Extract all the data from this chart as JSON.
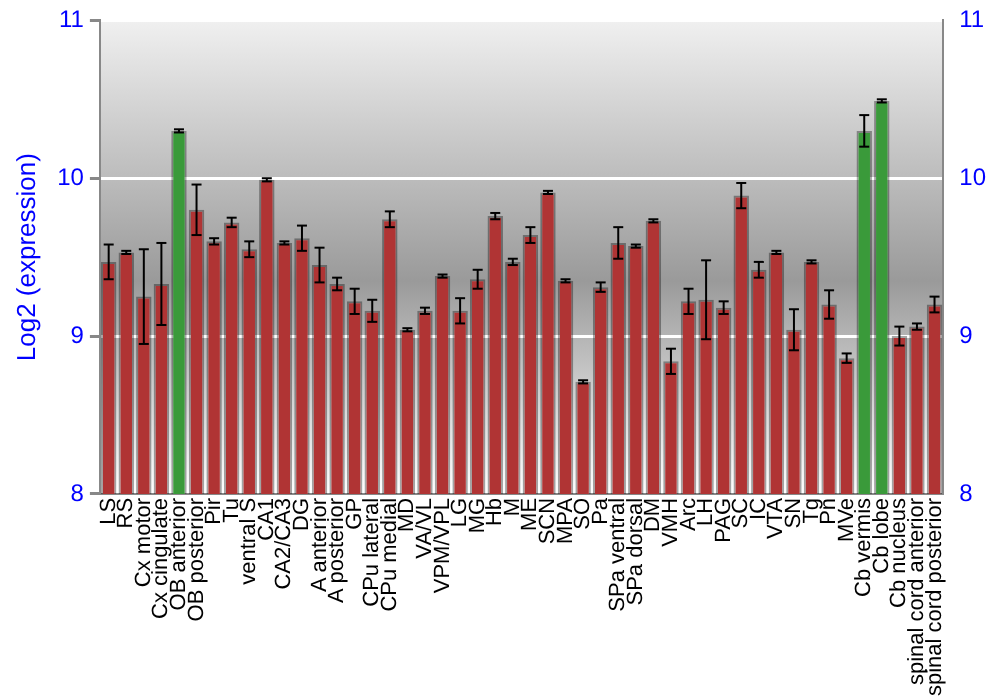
{
  "chart_data": {
    "type": "bar",
    "ylabel": "Log2 (expression)",
    "categories": [
      "LS",
      "RS",
      "Cx motor",
      "Cx cingulate",
      "OB anterior",
      "OB posterior",
      "Pir",
      "Tu",
      "ventral S",
      "CA1",
      "CA2/CA3",
      "DG",
      "A anterior",
      "A posterior",
      "GP",
      "CPu lateral",
      "CPu medial",
      "MD",
      "VA/VL",
      "VPM/VPL",
      "LG",
      "MG",
      "Hb",
      "M",
      "ME",
      "SCN",
      "MPA",
      "SO",
      "Pa",
      "SPa ventral",
      "SPa dorsal",
      "DM",
      "VMH",
      "Arc",
      "LH",
      "PAG",
      "SC",
      "IC",
      "VTA",
      "SN",
      "Tg",
      "Pn",
      "MVe",
      "Cb vermis",
      "Cb lobe",
      "Cb nucleus",
      "spinal cord anterior",
      "spinal cord posterior"
    ],
    "values": [
      9.47,
      9.53,
      9.25,
      9.33,
      10.3,
      9.8,
      9.6,
      9.72,
      9.55,
      9.99,
      9.59,
      9.62,
      9.45,
      9.33,
      9.22,
      9.16,
      9.74,
      9.04,
      9.16,
      9.38,
      9.16,
      9.36,
      9.76,
      9.47,
      9.64,
      9.91,
      9.35,
      8.71,
      9.31,
      9.59,
      9.57,
      9.73,
      8.84,
      9.22,
      9.23,
      9.18,
      9.89,
      9.42,
      9.53,
      9.04,
      9.47,
      9.2,
      8.86,
      10.3,
      10.49,
      9.0,
      9.06,
      9.2
    ],
    "errors": [
      0.11,
      0.01,
      0.3,
      0.26,
      0.01,
      0.16,
      0.02,
      0.03,
      0.05,
      0.01,
      0.01,
      0.08,
      0.11,
      0.04,
      0.08,
      0.07,
      0.05,
      0.01,
      0.02,
      0.01,
      0.08,
      0.06,
      0.02,
      0.02,
      0.05,
      0.01,
      0.01,
      0.01,
      0.03,
      0.1,
      0.01,
      0.01,
      0.08,
      0.08,
      0.25,
      0.04,
      0.08,
      0.05,
      0.01,
      0.13,
      0.01,
      0.09,
      0.03,
      0.1,
      0.01,
      0.06,
      0.02,
      0.05
    ],
    "colors": [
      "#b03434",
      "#b03434",
      "#b03434",
      "#b03434",
      "#3a9a3a",
      "#b03434",
      "#b03434",
      "#b03434",
      "#b03434",
      "#b03434",
      "#b03434",
      "#b03434",
      "#b03434",
      "#b03434",
      "#b03434",
      "#b03434",
      "#b03434",
      "#b03434",
      "#b03434",
      "#b03434",
      "#b03434",
      "#b03434",
      "#b03434",
      "#b03434",
      "#b03434",
      "#b03434",
      "#b03434",
      "#b03434",
      "#b03434",
      "#b03434",
      "#b03434",
      "#b03434",
      "#b03434",
      "#b03434",
      "#b03434",
      "#b03434",
      "#b03434",
      "#b03434",
      "#b03434",
      "#b03434",
      "#b03434",
      "#b03434",
      "#b03434",
      "#3a9a3a",
      "#3a9a3a",
      "#b03434",
      "#b03434",
      "#b03434"
    ],
    "ylim": [
      8,
      11
    ],
    "yticks": [
      8,
      9,
      10,
      11
    ],
    "y2lim": [
      8,
      11
    ],
    "y2ticks": [
      8,
      9,
      10,
      11
    ],
    "grid": "y",
    "legend": false
  }
}
